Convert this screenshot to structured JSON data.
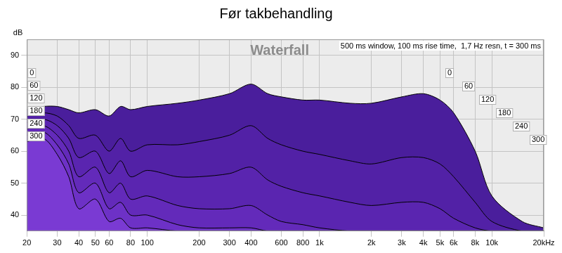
{
  "chart_data": {
    "type": "line",
    "title": "Før takbehandling",
    "y_label": "dB",
    "annotations": [
      "Waterfall",
      "500 ms window, 100 ms rise time,  1,7 Hz resn, t = 300 ms"
    ],
    "log": "x",
    "grid": true,
    "x": [
      20,
      25,
      30,
      35,
      40,
      50,
      60,
      70,
      80,
      100,
      150,
      200,
      300,
      400,
      500,
      600,
      800,
      1000,
      1500,
      2000,
      3000,
      4000,
      5000,
      6000,
      8000,
      10000,
      15000,
      20000
    ],
    "xlim": [
      20,
      20000
    ],
    "xticks": [
      20,
      30,
      40,
      50,
      60,
      80,
      100,
      200,
      300,
      400,
      600,
      800,
      {
        "value": 1000,
        "label": "1k"
      },
      {
        "value": 2000,
        "label": "2k"
      },
      {
        "value": 3000,
        "label": "3k"
      },
      {
        "value": 4000,
        "label": "4k"
      },
      {
        "value": 5000,
        "label": "5k"
      },
      {
        "value": 6000,
        "label": "6k"
      },
      {
        "value": 8000,
        "label": "8k"
      },
      {
        "value": 10000,
        "label": "10k"
      },
      {
        "value": 20000,
        "label": "20kHz"
      }
    ],
    "ylim": [
      35,
      95
    ],
    "yticks": [
      40,
      50,
      60,
      70,
      80,
      90
    ],
    "series": [
      {
        "name": "0",
        "color": "#4a1e9c",
        "values": [
          73,
          74,
          74,
          73,
          72,
          73,
          71,
          74,
          73,
          74,
          75,
          76,
          78,
          81,
          78,
          77,
          76,
          76,
          75,
          75,
          77,
          78,
          76,
          72,
          60,
          46,
          38,
          36
        ]
      },
      {
        "name": "60",
        "color": "#5221a6",
        "values": [
          71,
          72,
          71,
          68,
          64,
          65,
          60,
          64,
          60,
          62,
          62,
          63,
          65,
          68,
          64,
          62,
          60,
          59,
          57,
          56,
          58,
          58,
          56,
          52,
          44,
          38,
          35,
          35
        ]
      },
      {
        "name": "120",
        "color": "#5a25b0",
        "values": [
          69,
          70,
          68,
          64,
          58,
          60,
          53,
          57,
          52,
          54,
          52,
          52,
          53,
          55,
          51,
          49,
          47,
          46,
          44,
          43,
          44,
          44,
          42,
          39,
          36,
          35,
          35,
          35
        ]
      },
      {
        "name": "180",
        "color": "#632aba",
        "values": [
          67,
          68,
          65,
          60,
          52,
          55,
          47,
          50,
          45,
          46,
          43,
          42,
          42,
          43,
          40,
          38,
          37,
          36,
          35,
          35,
          35,
          35,
          35,
          35,
          35,
          35,
          35,
          35
        ]
      },
      {
        "name": "240",
        "color": "#6d31c6",
        "values": [
          65,
          66,
          62,
          56,
          47,
          50,
          42,
          44,
          40,
          40,
          37,
          36,
          36,
          36,
          35,
          35,
          35,
          35,
          35,
          35,
          35,
          35,
          35,
          35,
          35,
          35,
          35,
          35
        ]
      },
      {
        "name": "300",
        "color": "#7a3ad3",
        "values": [
          63,
          64,
          59,
          52,
          42,
          45,
          38,
          39,
          36,
          36,
          35,
          35,
          35,
          35,
          35,
          35,
          35,
          35,
          35,
          35,
          35,
          35,
          35,
          35,
          35,
          35,
          35,
          35
        ]
      }
    ]
  }
}
